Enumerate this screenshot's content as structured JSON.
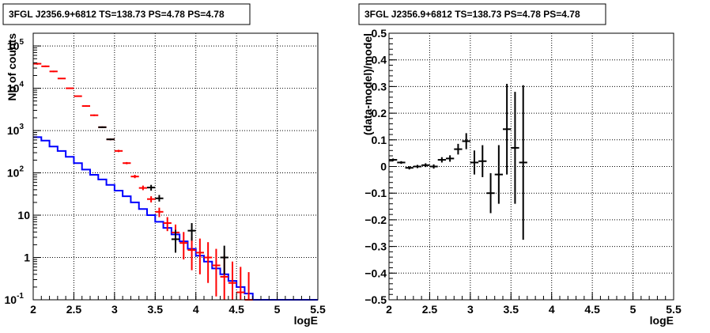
{
  "chart_data": [
    {
      "type": "line",
      "title": "3FGL J2356.9+6812 TS=138.73 PS=4.78 PS=4.78",
      "xlabel": "logE",
      "ylabel": "Nb of counts",
      "xlim": [
        2,
        5.5
      ],
      "ylim": [
        0.1,
        200000
      ],
      "yscale": "log",
      "grid": true,
      "x_ticks": [
        "2",
        "2.5",
        "3",
        "3.5",
        "4",
        "4.5",
        "5",
        "5.5"
      ],
      "y_ticks": [
        {
          "value": 0.1,
          "label": "10",
          "sup": "-1"
        },
        {
          "value": 1,
          "label": "1",
          "sup": ""
        },
        {
          "value": 10,
          "label": "10",
          "sup": ""
        },
        {
          "value": 100,
          "label": "10",
          "sup": "2"
        },
        {
          "value": 1000,
          "label": "10",
          "sup": "3"
        },
        {
          "value": 10000,
          "label": "10",
          "sup": "4"
        },
        {
          "value": 100000,
          "label": "10",
          "sup": "5"
        }
      ],
      "series": [
        {
          "color": "#0000ff",
          "kind": "step",
          "bin_width": 0.1,
          "x_low": [
            2.0,
            2.1,
            2.2,
            2.3,
            2.4,
            2.5,
            2.6,
            2.7,
            2.8,
            2.9,
            3.0,
            3.1,
            3.2,
            3.3,
            3.4,
            3.5,
            3.6,
            3.7,
            3.8,
            3.9,
            4.0,
            4.1,
            4.2,
            4.3,
            4.4,
            4.5,
            4.6,
            4.7,
            4.8,
            4.9,
            5.0,
            5.1,
            5.2,
            5.3,
            5.4
          ],
          "values": [
            700,
            580,
            420,
            330,
            240,
            170,
            120,
            90,
            70,
            52,
            38,
            28,
            20,
            14,
            10,
            7,
            5,
            3.5,
            2.4,
            1.6,
            1.1,
            0.8,
            0.55,
            0.4,
            0.28,
            0.2,
            0.14,
            0.1,
            0.1,
            0.1,
            0.1,
            0.1,
            0.1,
            0.1,
            0.1
          ]
        },
        {
          "color": "#ff0000",
          "kind": "errorbar",
          "x": [
            2.05,
            2.15,
            2.25,
            2.35,
            2.45,
            2.55,
            2.65,
            2.75,
            2.85,
            2.95,
            3.05,
            3.15,
            3.25,
            3.35,
            3.45,
            3.55,
            3.65,
            3.75,
            3.85,
            3.95,
            4.05,
            4.15,
            4.25,
            4.35,
            4.45,
            4.55,
            4.65
          ],
          "y": [
            38000,
            33000,
            25000,
            17000,
            10000,
            6500,
            3800,
            2300,
            1200,
            620,
            330,
            170,
            82,
            44,
            24,
            12,
            6.5,
            3.9,
            2.2,
            1.5,
            1.3,
            1.0,
            0.65,
            0.35,
            0.25,
            0.15,
            0.1
          ],
          "y_low": [
            36000,
            31500,
            24000,
            16500,
            9700,
            6300,
            3650,
            2200,
            1150,
            590,
            310,
            160,
            75,
            39,
            20,
            9,
            4.2,
            2.2,
            0.9,
            0.5,
            0.4,
            0.25,
            0.12,
            0.1,
            0.1,
            0.1,
            0.1
          ],
          "y_high": [
            40000,
            34500,
            26000,
            17500,
            10300,
            6700,
            3950,
            2400,
            1250,
            650,
            350,
            180,
            90,
            50,
            28,
            15,
            9,
            6,
            4,
            3,
            2.8,
            2.3,
            1.6,
            1.1,
            0.8,
            0.6,
            0.45
          ]
        },
        {
          "color": "#000000",
          "kind": "errorbar",
          "x": [
            2.85,
            2.95,
            3.45,
            3.55,
            3.75,
            3.95,
            4.35
          ],
          "y": [
            1200,
            620,
            45,
            25,
            2.7,
            4.3,
            1.0
          ],
          "y_low": [
            1150,
            590,
            38,
            21,
            1.3,
            2.5,
            0.4
          ],
          "y_high": [
            1250,
            650,
            52,
            30,
            4.5,
            6.5,
            1.9
          ]
        }
      ]
    },
    {
      "type": "scatter",
      "title": "3FGL J2356.9+6812 TS=138.73 PS=4.78 PS=4.78",
      "xlabel": "logE",
      "ylabel": "(data-model)/model",
      "xlim": [
        2,
        5.5
      ],
      "ylim": [
        -0.5,
        0.5
      ],
      "grid": true,
      "x_ticks": [
        "2",
        "2.5",
        "3",
        "3.5",
        "4",
        "4.5",
        "5",
        "5.5"
      ],
      "y_ticks": [
        "−0.5",
        "−0.4",
        "−0.3",
        "−0.2",
        "−0.1",
        "0",
        "0.1",
        "0.2",
        "0.3",
        "0.4",
        "0.5"
      ],
      "points": {
        "x": [
          2.05,
          2.15,
          2.25,
          2.35,
          2.45,
          2.55,
          2.65,
          2.75,
          2.85,
          2.95,
          3.05,
          3.15,
          3.25,
          3.35,
          3.45,
          3.55,
          3.65
        ],
        "y": [
          0.025,
          0.015,
          -0.005,
          0.0,
          0.005,
          0.0,
          0.025,
          0.03,
          0.065,
          0.095,
          0.015,
          0.02,
          -0.1,
          -0.03,
          0.14,
          0.07,
          0.015
        ],
        "y_err": [
          0.005,
          0.005,
          0.006,
          0.006,
          0.007,
          0.008,
          0.01,
          0.012,
          0.02,
          0.03,
          0.045,
          0.06,
          0.075,
          0.11,
          0.17,
          0.21,
          0.29
        ]
      }
    }
  ]
}
